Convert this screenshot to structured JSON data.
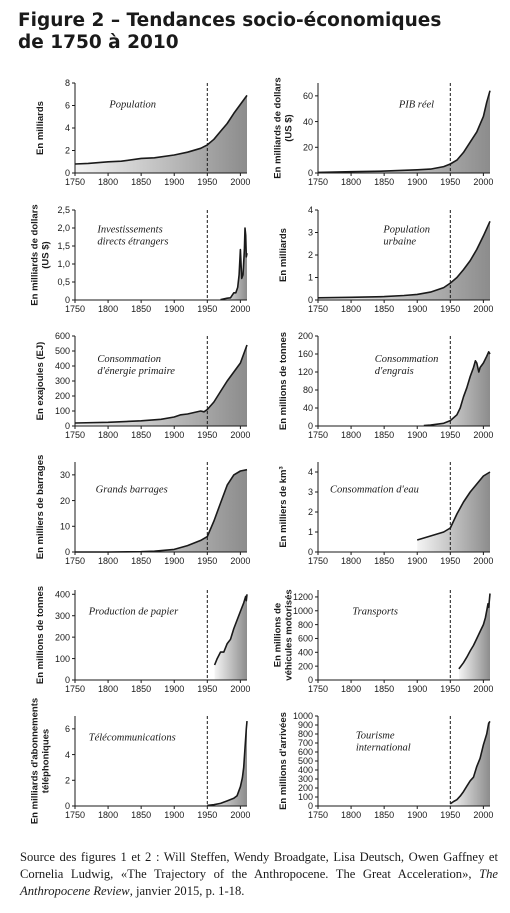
{
  "figure": {
    "title_line1": "Figure 2 – Tendances socio-économiques",
    "title_line2": "de 1750 à 2010"
  },
  "source": {
    "text_before": "Source des figures 1 et 2 : Will Steffen, Wendy Broadgate, Lisa Deutsch, Owen Gaffney et Cornelia Ludwig, «The Trajectory of the Anthropocene. The Great Acceleration», ",
    "journal": "The Anthropocene Review",
    "text_after": ", janvier 2015, p. 1-18."
  },
  "colors": {
    "area_dark": "#8c8c8c",
    "area_light": "#f4f4f4",
    "line": "#1a1a1a"
  },
  "chart_data": [
    {
      "type": "area",
      "annotation": "Population",
      "ylabel": [
        "En milliards"
      ],
      "xlim": [
        1750,
        2010
      ],
      "xticks": [
        1750,
        1800,
        1850,
        1900,
        1950,
        2000
      ],
      "ylim": [
        0,
        8
      ],
      "yticks": [
        0,
        2,
        4,
        6,
        8
      ],
      "ytick_labels": [
        "0",
        "2",
        "4",
        "6",
        "8"
      ],
      "vline": 1950,
      "x": [
        1750,
        1770,
        1800,
        1820,
        1850,
        1870,
        1900,
        1920,
        1940,
        1950,
        1960,
        1970,
        1980,
        1990,
        2000,
        2010
      ],
      "y": [
        0.8,
        0.85,
        1.0,
        1.05,
        1.3,
        1.35,
        1.6,
        1.85,
        2.2,
        2.5,
        3.0,
        3.7,
        4.4,
        5.3,
        6.1,
        6.9
      ]
    },
    {
      "type": "area",
      "annotation": "PIB réel",
      "ylabel": [
        "En milliards de dollars",
        "(US $)"
      ],
      "xlim": [
        1750,
        2010
      ],
      "xticks": [
        1750,
        1800,
        1850,
        1900,
        1950,
        2000
      ],
      "ylim": [
        0,
        70
      ],
      "yticks": [
        0,
        20,
        40,
        60
      ],
      "ytick_labels": [
        "0",
        "20",
        "40",
        "60"
      ],
      "vline": 1950,
      "x": [
        1750,
        1800,
        1850,
        1900,
        1920,
        1940,
        1950,
        1960,
        1970,
        1980,
        1990,
        2000,
        2005,
        2010
      ],
      "y": [
        0.5,
        1,
        1.5,
        2.5,
        3,
        5,
        7,
        10,
        16,
        24,
        32,
        44,
        55,
        64
      ]
    },
    {
      "type": "area",
      "annotation": [
        "Investissements",
        "directs étrangers"
      ],
      "ylabel": [
        "En milliards de dollars",
        "(US $)"
      ],
      "xlim": [
        1750,
        2010
      ],
      "xticks": [
        1750,
        1800,
        1850,
        1900,
        1950,
        2000
      ],
      "ylim": [
        0,
        2.5
      ],
      "yticks": [
        0,
        0.5,
        1,
        1.5,
        2,
        2.5
      ],
      "ytick_labels": [
        "0",
        "0,5",
        "1,0",
        "1,5",
        "2,0",
        "2,5"
      ],
      "vline": 1950,
      "x": [
        1970,
        1975,
        1980,
        1985,
        1990,
        1993,
        1996,
        1998,
        2000,
        2002,
        2004,
        2006,
        2007,
        2008,
        2009,
        2010
      ],
      "y": [
        0.01,
        0.03,
        0.05,
        0.06,
        0.2,
        0.2,
        0.35,
        0.7,
        1.4,
        0.6,
        0.7,
        1.4,
        2.0,
        1.8,
        1.2,
        1.3
      ]
    },
    {
      "type": "area",
      "annotation": [
        "Population",
        "urbaine"
      ],
      "ylabel": [
        "En milliards"
      ],
      "xlim": [
        1750,
        2010
      ],
      "xticks": [
        1750,
        1800,
        1850,
        1900,
        1950,
        2000
      ],
      "ylim": [
        0,
        4
      ],
      "yticks": [
        0,
        1,
        2,
        3,
        4
      ],
      "ytick_labels": [
        "0",
        "1",
        "2",
        "3",
        "4"
      ],
      "vline": 1950,
      "x": [
        1750,
        1800,
        1850,
        1880,
        1900,
        1920,
        1940,
        1950,
        1960,
        1970,
        1980,
        1990,
        2000,
        2010
      ],
      "y": [
        0.1,
        0.12,
        0.15,
        0.2,
        0.25,
        0.35,
        0.55,
        0.75,
        1.0,
        1.35,
        1.75,
        2.25,
        2.85,
        3.5
      ]
    },
    {
      "type": "area",
      "annotation": [
        "Consommation",
        "d'énergie primaire"
      ],
      "ylabel": [
        "En exajoules (EJ)"
      ],
      "xlim": [
        1750,
        2010
      ],
      "xticks": [
        1750,
        1800,
        1850,
        1900,
        1950,
        2000
      ],
      "ylim": [
        0,
        600
      ],
      "yticks": [
        0,
        100,
        200,
        300,
        400,
        500,
        600
      ],
      "ytick_labels": [
        "0",
        "100",
        "200",
        "300",
        "400",
        "500",
        "600"
      ],
      "vline": 1950,
      "x": [
        1750,
        1800,
        1850,
        1880,
        1900,
        1910,
        1920,
        1930,
        1940,
        1945,
        1950,
        1960,
        1970,
        1980,
        1990,
        2000,
        2005,
        2010
      ],
      "y": [
        20,
        25,
        35,
        45,
        60,
        75,
        80,
        90,
        100,
        95,
        110,
        160,
        230,
        300,
        360,
        420,
        480,
        540
      ]
    },
    {
      "type": "area",
      "annotation": [
        "Consommation",
        "d'engrais"
      ],
      "ylabel": [
        "En millions de tonnes"
      ],
      "xlim": [
        1750,
        2010
      ],
      "xticks": [
        1750,
        1800,
        1850,
        1900,
        1950,
        2000
      ],
      "ylim": [
        0,
        200
      ],
      "yticks": [
        0,
        40,
        80,
        120,
        160,
        200
      ],
      "ytick_labels": [
        "0",
        "40",
        "80",
        "120",
        "160",
        "200"
      ],
      "vline": 1950,
      "x": [
        1910,
        1920,
        1930,
        1940,
        1950,
        1960,
        1965,
        1970,
        1975,
        1980,
        1985,
        1988,
        1990,
        1993,
        1995,
        2000,
        2005,
        2008,
        2010
      ],
      "y": [
        1,
        2,
        4,
        6,
        12,
        25,
        40,
        65,
        85,
        110,
        130,
        145,
        140,
        120,
        130,
        140,
        155,
        165,
        160
      ]
    },
    {
      "type": "area",
      "annotation": "Grands barrages",
      "ylabel": [
        "En milliers de barrages"
      ],
      "xlim": [
        1750,
        2010
      ],
      "xticks": [
        1750,
        1800,
        1850,
        1900,
        1950,
        2000
      ],
      "ylim": [
        0,
        35
      ],
      "yticks": [
        0,
        10,
        20,
        30
      ],
      "ytick_labels": [
        "0",
        "10",
        "20",
        "30"
      ],
      "vline": 1950,
      "x": [
        1750,
        1800,
        1850,
        1870,
        1900,
        1920,
        1940,
        1950,
        1960,
        1970,
        1980,
        1990,
        2000,
        2010
      ],
      "y": [
        0,
        0,
        0.1,
        0.3,
        1,
        2.5,
        4.5,
        6,
        12,
        19,
        26,
        30,
        31.5,
        32
      ]
    },
    {
      "type": "area",
      "annotation": "Consommation d'eau",
      "ylabel": [
        "En milliers de km³"
      ],
      "xlim": [
        1750,
        2010
      ],
      "xticks": [
        1750,
        1800,
        1850,
        1900,
        1950,
        2000
      ],
      "ylim": [
        0,
        4.5
      ],
      "yticks": [
        0,
        1,
        2,
        3,
        4
      ],
      "ytick_labels": [
        "0",
        "1",
        "2",
        "3",
        "4"
      ],
      "vline": 1950,
      "x": [
        1900,
        1920,
        1940,
        1950,
        1960,
        1970,
        1980,
        1990,
        2000,
        2010
      ],
      "y": [
        0.6,
        0.8,
        1.0,
        1.2,
        1.9,
        2.5,
        3.0,
        3.4,
        3.8,
        4.0
      ]
    },
    {
      "type": "area",
      "annotation": "Production de papier",
      "ylabel": [
        "En millions de tonnes"
      ],
      "xlim": [
        1750,
        2010
      ],
      "xticks": [
        1750,
        1800,
        1850,
        1900,
        1950,
        2000
      ],
      "ylim": [
        0,
        420
      ],
      "yticks": [
        0,
        100,
        200,
        300,
        400
      ],
      "ytick_labels": [
        "0",
        "100",
        "200",
        "300",
        "400"
      ],
      "vline": 1950,
      "x": [
        1961,
        1965,
        1970,
        1975,
        1980,
        1985,
        1990,
        1995,
        2000,
        2005,
        2008,
        2009,
        2010
      ],
      "y": [
        70,
        100,
        130,
        130,
        170,
        190,
        240,
        280,
        320,
        360,
        390,
        370,
        400
      ]
    },
    {
      "type": "area",
      "annotation": "Transports",
      "ylabel": [
        "En millions de",
        "véhicules motorisés"
      ],
      "xlim": [
        1750,
        2010
      ],
      "xticks": [
        1750,
        1800,
        1850,
        1900,
        1950,
        2000
      ],
      "ylim": [
        0,
        1300
      ],
      "yticks": [
        0,
        200,
        400,
        600,
        800,
        1000,
        1200
      ],
      "ytick_labels": [
        "0",
        "200",
        "400",
        "600",
        "800",
        "1000",
        "1200"
      ],
      "vline": 1950,
      "x": [
        1963,
        1970,
        1975,
        1980,
        1985,
        1990,
        1995,
        2000,
        2003,
        2005,
        2007,
        2008,
        2010
      ],
      "y": [
        160,
        250,
        330,
        420,
        500,
        600,
        700,
        800,
        900,
        1000,
        1100,
        1050,
        1250
      ]
    },
    {
      "type": "area",
      "annotation": "Télécommunications",
      "ylabel": [
        "En milliards d'abonnements",
        "téléphoniques"
      ],
      "xlim": [
        1750,
        2010
      ],
      "xticks": [
        1750,
        1800,
        1850,
        1900,
        1950,
        2000
      ],
      "ylim": [
        0,
        7
      ],
      "yticks": [
        0,
        2,
        4,
        6
      ],
      "ytick_labels": [
        "0",
        "2",
        "4",
        "6"
      ],
      "vline": 1950,
      "x": [
        1950,
        1960,
        1970,
        1980,
        1990,
        1995,
        2000,
        2003,
        2005,
        2007,
        2009,
        2010
      ],
      "y": [
        0.05,
        0.1,
        0.2,
        0.4,
        0.6,
        0.8,
        1.5,
        2.2,
        3.0,
        4.5,
        6.0,
        6.6
      ]
    },
    {
      "type": "area",
      "annotation": [
        "Tourisme",
        "international"
      ],
      "ylabel": [
        "En millions d'arrivées"
      ],
      "xlim": [
        1750,
        2010
      ],
      "xticks": [
        1750,
        1800,
        1850,
        1900,
        1950,
        2000
      ],
      "ylim": [
        0,
        1000
      ],
      "yticks": [
        0,
        100,
        200,
        300,
        400,
        500,
        600,
        700,
        800,
        900,
        1000
      ],
      "ytick_labels": [
        "0",
        "100",
        "200",
        "300",
        "400",
        "500",
        "600",
        "700",
        "800",
        "900",
        "1000"
      ],
      "vline": 1950,
      "x": [
        1950,
        1955,
        1960,
        1965,
        1970,
        1975,
        1980,
        1985,
        1990,
        1995,
        2000,
        2005,
        2008,
        2010
      ],
      "y": [
        25,
        50,
        70,
        110,
        160,
        220,
        280,
        320,
        440,
        530,
        680,
        800,
        920,
        940
      ]
    }
  ]
}
